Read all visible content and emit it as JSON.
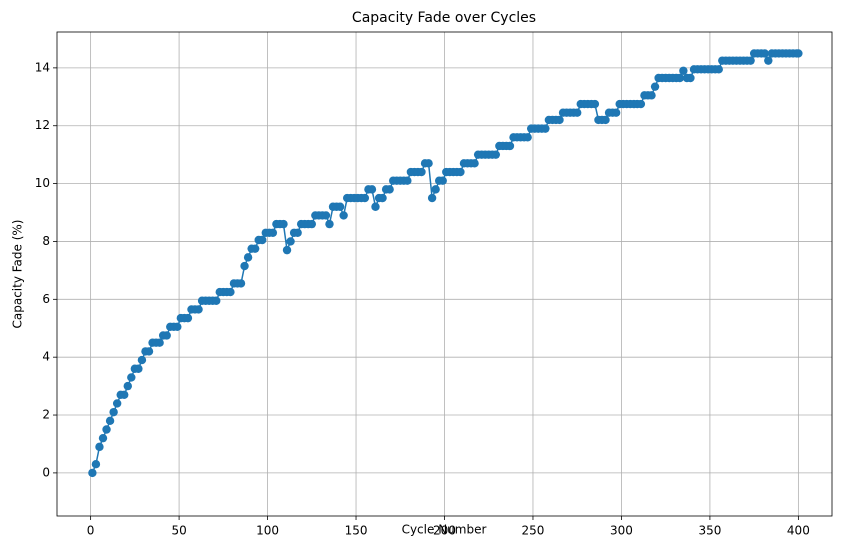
{
  "chart_data": {
    "type": "line",
    "title": "Capacity Fade over Cycles",
    "x_label": "Cycle Number",
    "y_label": "Capacity Fade (%)",
    "x": [
      1,
      3,
      5,
      7,
      9,
      11,
      13,
      15,
      17,
      19,
      21,
      23,
      25,
      27,
      29,
      31,
      33,
      35,
      37,
      39,
      41,
      43,
      45,
      47,
      49,
      51,
      53,
      55,
      57,
      59,
      61,
      63,
      65,
      67,
      69,
      71,
      73,
      75,
      77,
      79,
      81,
      83,
      85,
      87,
      89,
      91,
      93,
      95,
      97,
      99,
      101,
      103,
      105,
      107,
      109,
      111,
      113,
      115,
      117,
      119,
      121,
      123,
      125,
      127,
      129,
      131,
      133,
      135,
      137,
      139,
      141,
      143,
      145,
      147,
      149,
      151,
      153,
      155,
      157,
      159,
      161,
      163,
      165,
      167,
      169,
      171,
      173,
      175,
      177,
      179,
      181,
      183,
      185,
      187,
      189,
      191,
      193,
      195,
      197,
      199,
      201,
      203,
      205,
      207,
      209,
      211,
      213,
      215,
      217,
      219,
      221,
      223,
      225,
      227,
      229,
      231,
      233,
      235,
      237,
      239,
      241,
      243,
      245,
      247,
      249,
      251,
      253,
      255,
      257,
      259,
      261,
      263,
      265,
      267,
      269,
      271,
      273,
      275,
      277,
      279,
      281,
      283,
      285,
      287,
      289,
      291,
      293,
      295,
      297,
      299,
      301,
      303,
      305,
      307,
      309,
      311,
      313,
      315,
      317,
      319,
      321,
      323,
      325,
      327,
      329,
      331,
      333,
      335,
      337,
      339,
      341,
      343,
      345,
      347,
      349,
      351,
      353,
      355,
      357,
      359,
      361,
      363,
      365,
      367,
      369,
      371,
      373,
      375,
      377,
      379,
      381,
      383,
      385,
      387,
      389,
      391,
      393,
      395,
      397,
      399,
      400
    ],
    "series": [
      {
        "name": "Capacity Fade",
        "color": "#1f77b4",
        "values": [
          0,
          0.3,
          0.9,
          1.2,
          1.5,
          1.8,
          2.1,
          2.4,
          2.7,
          2.7,
          3.0,
          3.3,
          3.6,
          3.6,
          3.9,
          4.2,
          4.2,
          4.5,
          4.5,
          4.5,
          4.75,
          4.75,
          5.05,
          5.05,
          5.05,
          5.35,
          5.35,
          5.35,
          5.65,
          5.65,
          5.65,
          5.95,
          5.95,
          5.95,
          5.95,
          5.95,
          6.25,
          6.25,
          6.25,
          6.25,
          6.55,
          6.55,
          6.55,
          7.15,
          7.45,
          7.75,
          7.75,
          8.05,
          8.05,
          8.3,
          8.3,
          8.3,
          8.6,
          8.6,
          8.6,
          7.7,
          8.0,
          8.3,
          8.3,
          8.6,
          8.6,
          8.6,
          8.6,
          8.9,
          8.9,
          8.9,
          8.9,
          8.6,
          9.2,
          9.2,
          9.2,
          8.9,
          9.5,
          9.5,
          9.5,
          9.5,
          9.5,
          9.5,
          9.8,
          9.8,
          9.2,
          9.5,
          9.5,
          9.8,
          9.8,
          10.1,
          10.1,
          10.1,
          10.1,
          10.1,
          10.4,
          10.4,
          10.4,
          10.4,
          10.7,
          10.7,
          9.5,
          9.8,
          10.1,
          10.1,
          10.4,
          10.4,
          10.4,
          10.4,
          10.4,
          10.7,
          10.7,
          10.7,
          10.7,
          11.0,
          11.0,
          11.0,
          11.0,
          11.0,
          11.0,
          11.3,
          11.3,
          11.3,
          11.3,
          11.6,
          11.6,
          11.6,
          11.6,
          11.6,
          11.9,
          11.9,
          11.9,
          11.9,
          11.9,
          12.2,
          12.2,
          12.2,
          12.2,
          12.45,
          12.45,
          12.45,
          12.45,
          12.45,
          12.75,
          12.75,
          12.75,
          12.75,
          12.75,
          12.2,
          12.2,
          12.2,
          12.45,
          12.45,
          12.45,
          12.75,
          12.75,
          12.75,
          12.75,
          12.75,
          12.75,
          12.75,
          13.05,
          13.05,
          13.05,
          13.35,
          13.65,
          13.65,
          13.65,
          13.65,
          13.65,
          13.65,
          13.65,
          13.9,
          13.65,
          13.65,
          13.95,
          13.95,
          13.95,
          13.95,
          13.95,
          13.95,
          13.95,
          13.95,
          14.25,
          14.25,
          14.25,
          14.25,
          14.25,
          14.25,
          14.25,
          14.25,
          14.25,
          14.5,
          14.5,
          14.5,
          14.5,
          14.25,
          14.5,
          14.5,
          14.5,
          14.5,
          14.5,
          14.5,
          14.5,
          14.5,
          14.5
        ]
      }
    ],
    "xlim": [
      -19,
      419
    ],
    "xticks": [
      0,
      50,
      100,
      150,
      200,
      250,
      300,
      350,
      400
    ],
    "ylim": [
      -1.49,
      15.24
    ],
    "yticks": [
      0,
      2,
      4,
      6,
      8,
      10,
      12,
      14
    ],
    "grid": true
  }
}
